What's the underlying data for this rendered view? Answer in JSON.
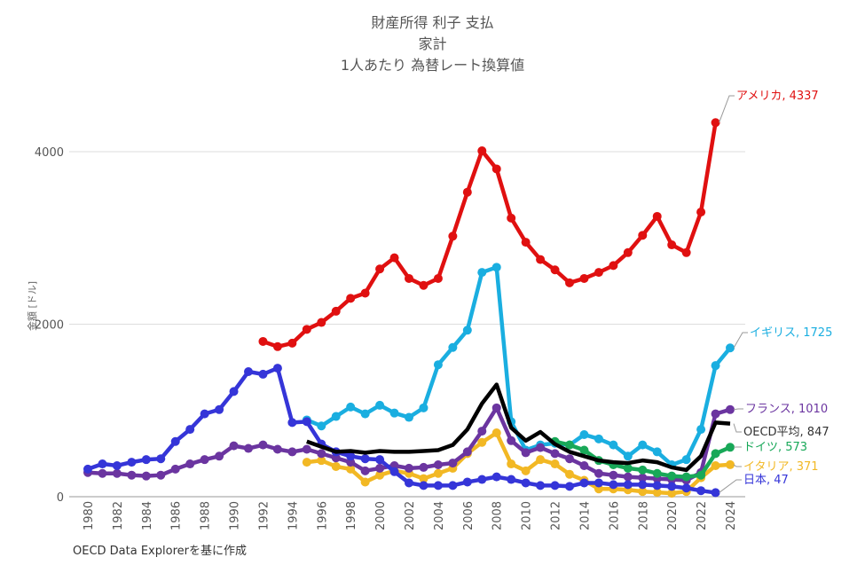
{
  "chart_data": {
    "type": "line",
    "title": [
      "財産所得 利子 支払",
      "家計",
      "1人あたり 為替レート換算値"
    ],
    "xlabel": "",
    "ylabel": "金額 [ドル]",
    "ylim": [
      0,
      4400
    ],
    "xlim": [
      1980,
      2024
    ],
    "yticks": [
      0,
      2000,
      4000
    ],
    "xticks": [
      1980,
      1982,
      1984,
      1986,
      1988,
      1990,
      1992,
      1994,
      1996,
      1998,
      2000,
      2002,
      2004,
      2006,
      2008,
      2010,
      2012,
      2014,
      2016,
      2018,
      2020,
      2022,
      2024
    ],
    "grid": true,
    "series": [
      {
        "name": "アメリカ",
        "label": "アメリカ, 4337",
        "color": "#e01010",
        "markers": true,
        "start": 1992,
        "values": [
          1800,
          1740,
          1780,
          1940,
          2020,
          2150,
          2300,
          2360,
          2640,
          2770,
          2530,
          2450,
          2530,
          3020,
          3530,
          4010,
          3800,
          3230,
          2950,
          2750,
          2630,
          2480,
          2530,
          2600,
          2680,
          2830,
          3030,
          3250,
          2920,
          2830,
          3300,
          4337
        ]
      },
      {
        "name": "イギリス",
        "label": "イギリス, 1725",
        "color": "#1aaee0",
        "markers": true,
        "start": 1995,
        "values": [
          890,
          820,
          930,
          1040,
          960,
          1060,
          970,
          920,
          1030,
          1530,
          1730,
          1930,
          2600,
          2660,
          870,
          540,
          600,
          620,
          600,
          720,
          670,
          600,
          470,
          600,
          520,
          370,
          430,
          780,
          1520,
          1725
        ]
      },
      {
        "name": "イタリア",
        "label": "イタリア, 371",
        "color": "#f2b824",
        "markers": true,
        "start": 1995,
        "values": [
          400,
          420,
          350,
          320,
          170,
          250,
          300,
          270,
          210,
          270,
          330,
          500,
          630,
          740,
          380,
          300,
          430,
          380,
          260,
          190,
          90,
          90,
          80,
          60,
          50,
          40,
          60,
          220,
          360,
          371
        ]
      },
      {
        "name": "フランス",
        "label": "フランス, 1010",
        "color": "#6b35a0",
        "markers": true,
        "start": 1980,
        "values": [
          280,
          270,
          270,
          250,
          240,
          250,
          320,
          380,
          430,
          470,
          590,
          560,
          600,
          550,
          520,
          550,
          500,
          450,
          400,
          300,
          330,
          360,
          330,
          340,
          370,
          390,
          520,
          760,
          1030,
          650,
          510,
          570,
          500,
          440,
          360,
          270,
          250,
          230,
          220,
          210,
          200,
          190,
          280,
          960,
          1010
        ]
      },
      {
        "name": "日本",
        "label": "日本, 47",
        "color": "#3535d8",
        "markers": true,
        "start": 1980,
        "values": [
          320,
          380,
          360,
          400,
          430,
          440,
          640,
          780,
          960,
          1010,
          1220,
          1450,
          1420,
          1490,
          860,
          870,
          610,
          520,
          470,
          440,
          430,
          290,
          160,
          130,
          130,
          130,
          170,
          200,
          230,
          200,
          160,
          130,
          130,
          120,
          160,
          160,
          140,
          140,
          140,
          130,
          120,
          100,
          70,
          47
        ]
      },
      {
        "name": "ドイツ",
        "label": "ドイツ, 573",
        "color": "#18a858",
        "markers": true,
        "start": 2012,
        "values": [
          640,
          600,
          540,
          420,
          370,
          330,
          310,
          270,
          240,
          230,
          250,
          500,
          573
        ]
      },
      {
        "name": "OECD平均",
        "label": "OECD平均, 847",
        "color": "#000000",
        "markers": false,
        "start": 1995,
        "values": [
          640,
          580,
          520,
          530,
          510,
          530,
          520,
          520,
          530,
          540,
          600,
          780,
          1080,
          1300,
          800,
          650,
          750,
          610,
          520,
          470,
          420,
          400,
          390,
          420,
          400,
          340,
          310,
          470,
          860,
          847
        ]
      }
    ]
  },
  "source": "OECD Data Explorerを基に作成"
}
